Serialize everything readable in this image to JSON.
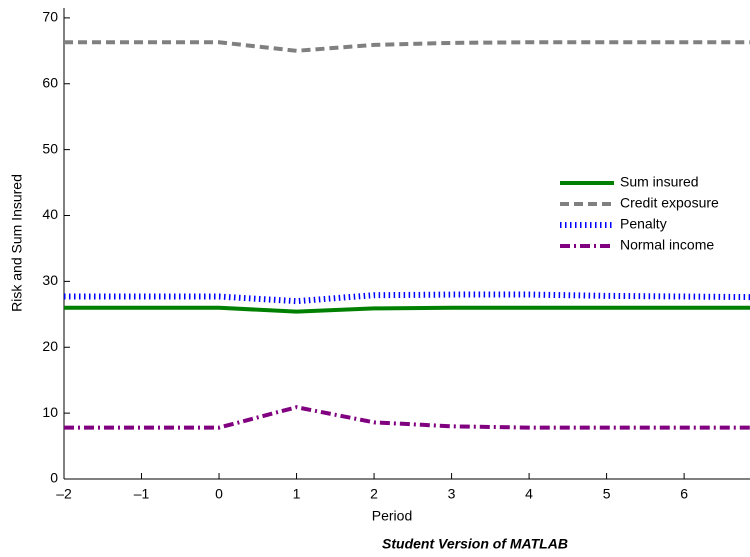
{
  "chart_data": {
    "type": "line",
    "x_label": "Period",
    "y_label": "Risk and Sum Insured",
    "watermark": "Student Version of MATLAB",
    "x": [
      -2,
      -1,
      0,
      1,
      2,
      3,
      4,
      5,
      6,
      7
    ],
    "series": [
      {
        "name": "Sum insured",
        "color": "#008000",
        "linestyle": "solid",
        "values": [
          26,
          26,
          26,
          25.4,
          25.9,
          26,
          26,
          26,
          26,
          26
        ]
      },
      {
        "name": "Credit exposure",
        "color": "#808080",
        "linestyle": "dashed",
        "values": [
          66.3,
          66.3,
          66.3,
          65,
          65.9,
          66.2,
          66.3,
          66.3,
          66.3,
          66.3
        ]
      },
      {
        "name": "Penalty",
        "color": "#0000ff",
        "linestyle": "dotted",
        "values": [
          27.7,
          27.7,
          27.7,
          27,
          27.9,
          28,
          28,
          27.8,
          27.7,
          27.6
        ]
      },
      {
        "name": "Normal income",
        "color": "#800080",
        "linestyle": "dashdot",
        "values": [
          7.8,
          7.8,
          7.8,
          10.9,
          8.6,
          8,
          7.8,
          7.8,
          7.8,
          7.8
        ]
      }
    ],
    "xlim": [
      -2,
      6.85
    ],
    "xticks": [
      {
        "value": -2,
        "label": "–2"
      },
      {
        "value": -1,
        "label": "–1"
      },
      0,
      1,
      2,
      3,
      4,
      5,
      6
    ],
    "ylim": [
      0,
      71.5
    ],
    "yticks": [
      0,
      10,
      20,
      30,
      40,
      50,
      60,
      70
    ],
    "legend": "right"
  }
}
